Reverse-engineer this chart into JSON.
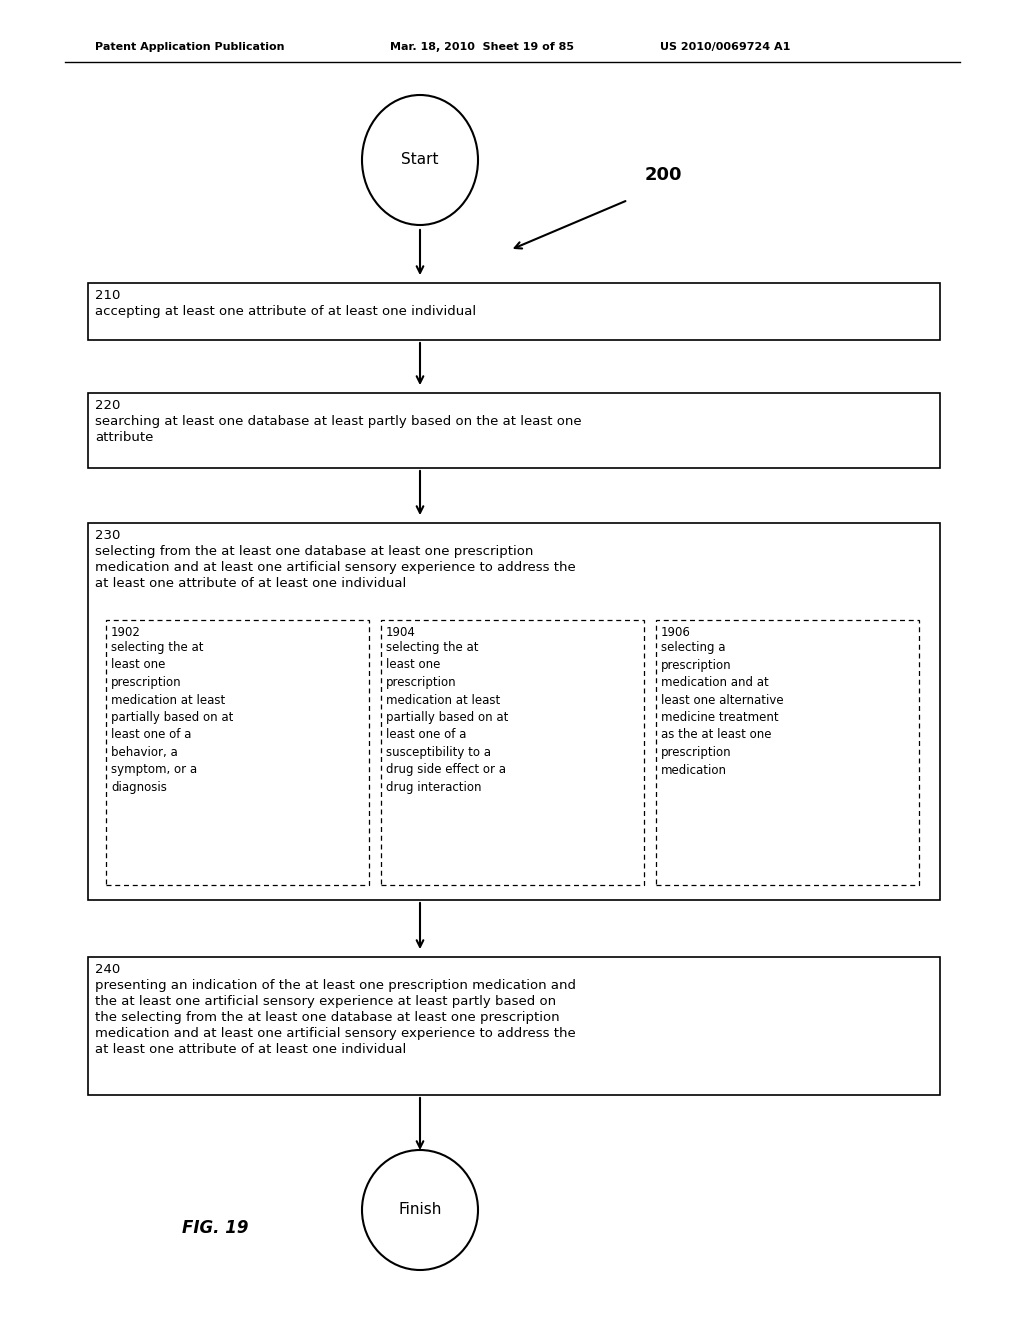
{
  "bg_color": "#ffffff",
  "header_left": "Patent Application Publication",
  "header_mid": "Mar. 18, 2010  Sheet 19 of 85",
  "header_right": "US 2010/0069724 A1",
  "fig_label": "FIG. 19",
  "diagram_label": "200",
  "start_text": "Start",
  "finish_text": "Finish",
  "box210_label": "210",
  "box210_text": "accepting at least one attribute of at least one individual",
  "box220_label": "220",
  "box220_line1": "searching at least one database at least partly based on the at least one",
  "box220_line2": "attribute",
  "box230_label": "230",
  "box230_line1": "selecting from the at least one database at least one prescription",
  "box230_line2": "medication and at least one artificial sensory experience to address the",
  "box230_line3": "at least one attribute of at least one individual",
  "box1902_label": "1902",
  "box1902_text": "selecting the at\nleast one\nprescription\nmedication at least\npartially based on at\nleast one of a\nbehavior, a\nsymptom, or a\ndiagnosis",
  "box1904_label": "1904",
  "box1904_text": "selecting the at\nleast one\nprescription\nmedication at least\npartially based on at\nleast one of a\nsusceptibility to a\ndrug side effect or a\ndrug interaction",
  "box1906_label": "1906",
  "box1906_text": "selecting a\nprescription\nmedication and at\nleast one alternative\nmedicine treatment\nas the at least one\nprescription\nmedication",
  "box240_label": "240",
  "box240_line1": "presenting an indication of the at least one prescription medication and",
  "box240_line2": "the at least one artificial sensory experience at least partly based on",
  "box240_line3": "the selecting from the at least one database at least one prescription",
  "box240_line4": "medication and at least one artificial sensory experience to address the",
  "box240_line5": "at least one attribute of at least one individual"
}
